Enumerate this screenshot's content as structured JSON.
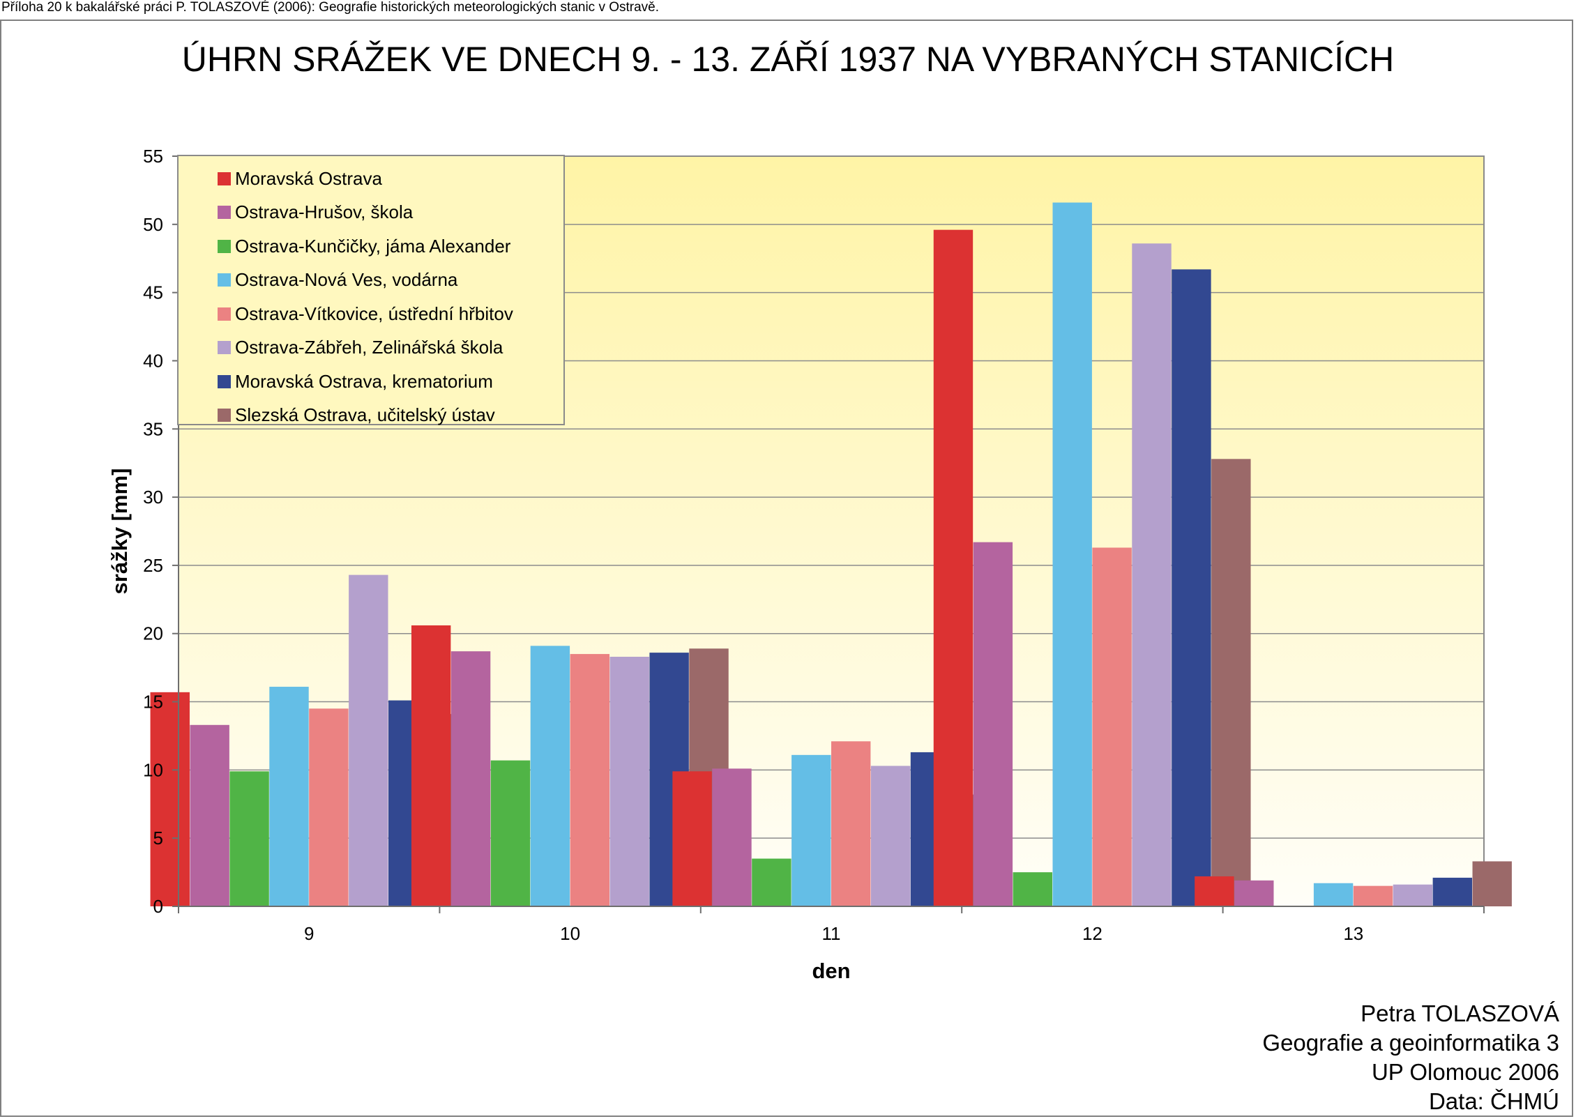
{
  "caption": "Příloha 20 k bakalářské práci P. TOLASZOVÉ (2006): Geografie historických meteorologických stanic v Ostravě.",
  "author": {
    "line1": "Petra TOLASZOVÁ",
    "line2": "Geografie a geoinformatika 3",
    "line3": "UP Olomouc 2006",
    "line4": "Data: ČHMÚ"
  },
  "chart_data": {
    "type": "bar",
    "title": "ÚHRN SRÁŽEK VE DNECH 9. - 13. ZÁŘÍ 1937 NA VYBRANÝCH STANICÍCH",
    "xlabel": "den",
    "ylabel": "srážky [mm]",
    "ylim": [
      0,
      55
    ],
    "yticks": [
      0,
      5,
      10,
      15,
      20,
      25,
      30,
      35,
      40,
      45,
      50,
      55
    ],
    "grid": true,
    "legend_position": "top-left",
    "categories": [
      "9",
      "10",
      "11",
      "12",
      "13"
    ],
    "series": [
      {
        "name": "Moravská Ostrava",
        "color": "#dc3232",
        "values": [
          15.7,
          20.6,
          9.9,
          49.6,
          2.2
        ]
      },
      {
        "name": "Ostrava-Hrušov, škola",
        "color": "#b4649f",
        "values": [
          13.3,
          18.7,
          10.1,
          26.7,
          1.9
        ]
      },
      {
        "name": "Ostrava-Kunčičky, jáma Alexander",
        "color": "#50b446",
        "values": [
          9.9,
          10.7,
          3.5,
          2.5,
          null
        ]
      },
      {
        "name": "Ostrava-Nová Ves, vodárna",
        "color": "#64bee6",
        "values": [
          16.1,
          19.1,
          11.1,
          51.6,
          1.7
        ]
      },
      {
        "name": "Ostrava-Vítkovice, ústřední hřbitov",
        "color": "#eb8282",
        "values": [
          14.5,
          18.5,
          12.1,
          26.3,
          1.5
        ]
      },
      {
        "name": "Ostrava-Zábřeh, Zelinářská škola",
        "color": "#b4a0cd",
        "values": [
          24.3,
          18.3,
          10.3,
          48.6,
          1.6
        ]
      },
      {
        "name": "Moravská Ostrava, krematorium",
        "color": "#324891",
        "values": [
          15.1,
          18.6,
          11.3,
          46.7,
          2.1
        ]
      },
      {
        "name": "Slezská Ostrava, učitelský ústav",
        "color": "#9b6969",
        "values": [
          14.1,
          18.9,
          8.2,
          32.8,
          3.3
        ]
      }
    ]
  }
}
